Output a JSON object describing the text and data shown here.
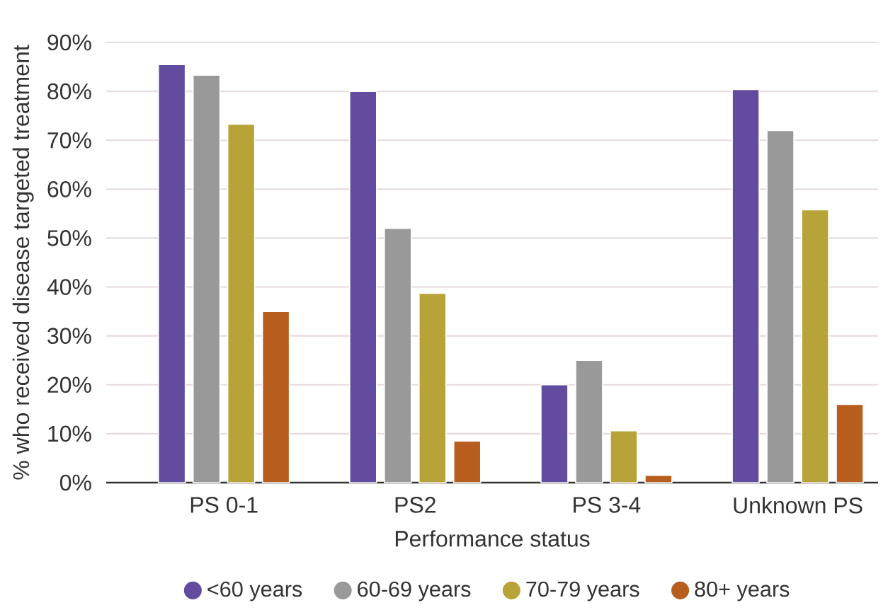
{
  "chart_data": {
    "type": "bar",
    "xlabel": "Performance status",
    "ylabel": "% who received disease targeted treatment",
    "categories": [
      "PS 0-1",
      "PS2",
      "PS 3-4",
      "Unknown PS"
    ],
    "series": [
      {
        "name": "<60 years",
        "color": "#624ca0",
        "values": [
          85.5,
          80,
          20,
          80.4
        ]
      },
      {
        "name": "60-69 years",
        "color": "#999999",
        "values": [
          83.3,
          52,
          25,
          72
        ]
      },
      {
        "name": "70-79 years",
        "color": "#b8a338",
        "values": [
          73.3,
          38.7,
          10.6,
          55.8
        ]
      },
      {
        "name": "80+ years",
        "color": "#b75d1e",
        "values": [
          35,
          8.5,
          1.5,
          16
        ]
      }
    ],
    "ylim": [
      0,
      90
    ],
    "yticks": [
      {
        "value": 0,
        "label": "0%"
      },
      {
        "value": 10,
        "label": "10%"
      },
      {
        "value": 20,
        "label": "20%"
      },
      {
        "value": 30,
        "label": "30%"
      },
      {
        "value": 40,
        "label": "40%"
      },
      {
        "value": 50,
        "label": "50%"
      },
      {
        "value": 60,
        "label": "60%"
      },
      {
        "value": 70,
        "label": "70%"
      },
      {
        "value": 80,
        "label": "80%"
      },
      {
        "value": 90,
        "label": "90%"
      }
    ],
    "grid": "y",
    "legend": "bottom"
  }
}
